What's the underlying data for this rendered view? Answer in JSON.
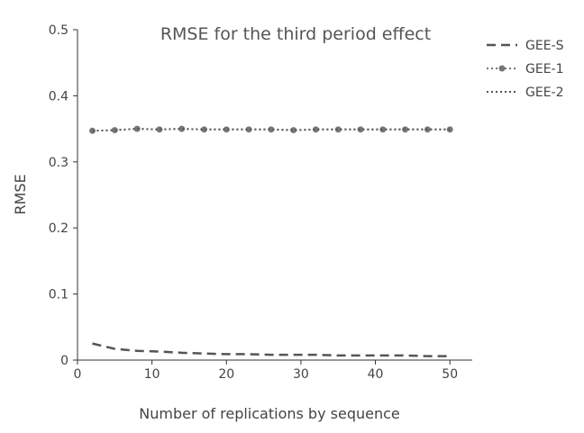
{
  "chart_data": {
    "type": "line",
    "title": "RMSE for the third period effect",
    "xlabel": "Number of replications by sequence",
    "ylabel": "RMSE",
    "xlim": [
      0,
      53
    ],
    "ylim": [
      0,
      0.5
    ],
    "x_ticks": [
      0,
      10,
      20,
      30,
      40,
      50
    ],
    "y_ticks": [
      0,
      0.1,
      0.2,
      0.3,
      0.4,
      0.5
    ],
    "x_tick_labels": [
      "0",
      "10",
      "20",
      "30",
      "40",
      "50"
    ],
    "y_tick_labels": [
      "0",
      "0.1",
      "0.2",
      "0.3",
      "0.4",
      "0.5"
    ],
    "grid": false,
    "legend_position": "top-right",
    "series": [
      {
        "name": "GEE-S",
        "style": "dashed",
        "markers": false,
        "color": "#555555",
        "points": [
          [
            2,
            0.025
          ],
          [
            5,
            0.017
          ],
          [
            8,
            0.014
          ],
          [
            11,
            0.013
          ],
          [
            14,
            0.011
          ],
          [
            17,
            0.01
          ],
          [
            20,
            0.009
          ],
          [
            23,
            0.009
          ],
          [
            26,
            0.008
          ],
          [
            29,
            0.008
          ],
          [
            32,
            0.008
          ],
          [
            35,
            0.007
          ],
          [
            38,
            0.007
          ],
          [
            41,
            0.007
          ],
          [
            44,
            0.007
          ],
          [
            47,
            0.006
          ],
          [
            50,
            0.006
          ]
        ]
      },
      {
        "name": "GEE-1",
        "style": "dotted",
        "markers": true,
        "color": "#777777",
        "points": [
          [
            2,
            0.347
          ],
          [
            5,
            0.348
          ],
          [
            8,
            0.35
          ],
          [
            11,
            0.349
          ],
          [
            14,
            0.35
          ],
          [
            17,
            0.349
          ],
          [
            20,
            0.349
          ],
          [
            23,
            0.349
          ],
          [
            26,
            0.349
          ],
          [
            29,
            0.348
          ],
          [
            32,
            0.349
          ],
          [
            35,
            0.349
          ],
          [
            38,
            0.349
          ],
          [
            41,
            0.349
          ],
          [
            44,
            0.349
          ],
          [
            47,
            0.349
          ],
          [
            50,
            0.349
          ]
        ]
      },
      {
        "name": "GEE-2",
        "style": "dotted",
        "markers": false,
        "color": "#555555",
        "points": [
          [
            2,
            0.347
          ],
          [
            5,
            0.348
          ],
          [
            8,
            0.35
          ],
          [
            11,
            0.349
          ],
          [
            14,
            0.35
          ],
          [
            17,
            0.349
          ],
          [
            20,
            0.349
          ],
          [
            23,
            0.349
          ],
          [
            26,
            0.349
          ],
          [
            29,
            0.348
          ],
          [
            32,
            0.349
          ],
          [
            35,
            0.349
          ],
          [
            38,
            0.349
          ],
          [
            41,
            0.349
          ],
          [
            44,
            0.349
          ],
          [
            47,
            0.349
          ],
          [
            50,
            0.349
          ]
        ]
      }
    ]
  },
  "colors": {
    "axis": "#333333",
    "text": "#444444",
    "title": "#555555"
  }
}
